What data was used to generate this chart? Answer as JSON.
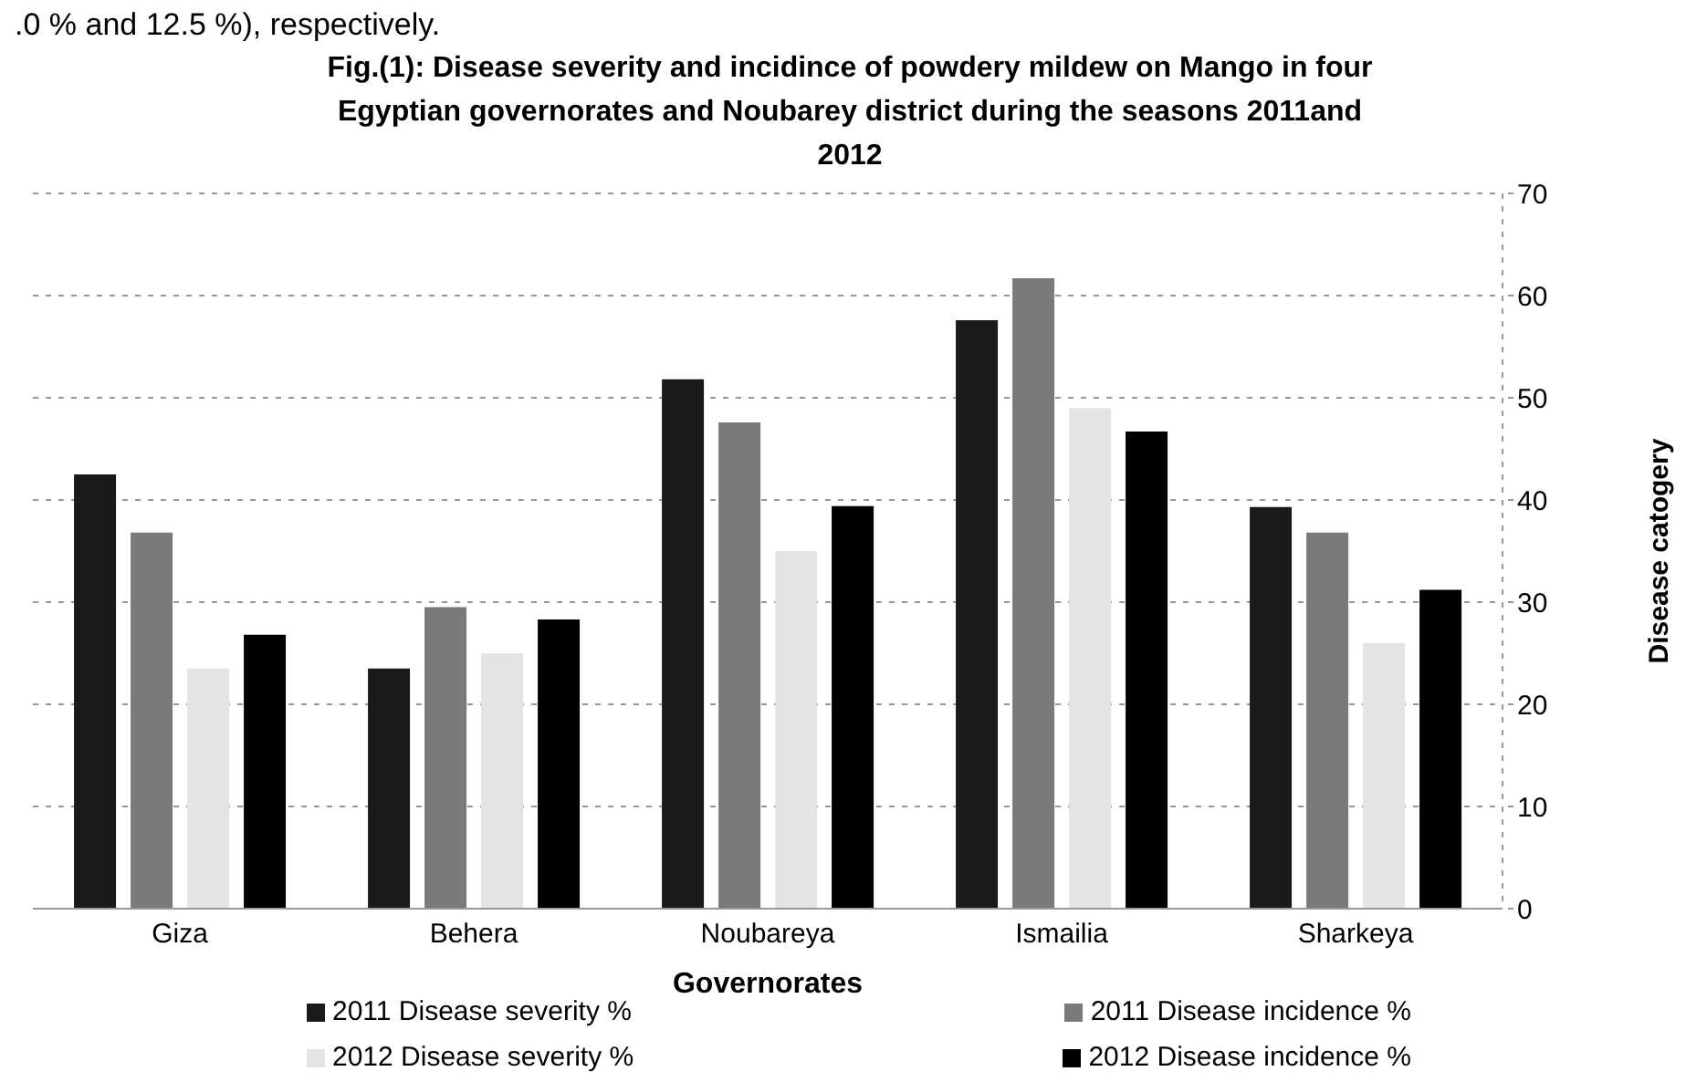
{
  "chart_data": {
    "type": "bar",
    "title": "Fig.(1): Disease severity and incidince  of powdery mildew on Mango in four Egyptian governorates and Noubarey district during the seasons 2011and 2012",
    "annotations": [
      ".0 % and 12.5 %), respectively."
    ],
    "xlabel": "Governorates",
    "ylabel": "Disease catogery",
    "categories": [
      "Giza",
      "Behera",
      "Noubareya",
      "Ismailia",
      "Sharkeya"
    ],
    "series": [
      {
        "name": "2011 Disease severity %",
        "color": "#1a1a1a",
        "values": [
          42.5,
          23.5,
          51.8,
          57.6,
          39.3
        ]
      },
      {
        "name": "2011 Disease incidence %",
        "color": "#7a7a7a",
        "values": [
          36.8,
          29.5,
          47.6,
          61.7,
          36.8
        ]
      },
      {
        "name": "2012 Disease severity %",
        "color": "#e4e4e4",
        "values": [
          23.5,
          25,
          35,
          49,
          26
        ]
      },
      {
        "name": "2012 Disease incidence %",
        "color": "#000000",
        "values": [
          26.8,
          28.3,
          39.4,
          46.7,
          31.2
        ]
      }
    ],
    "ylim": [
      0,
      70
    ],
    "yticks": [
      0,
      10,
      20,
      30,
      40,
      50,
      60,
      70
    ],
    "grid": "y",
    "legend": "bottom"
  }
}
